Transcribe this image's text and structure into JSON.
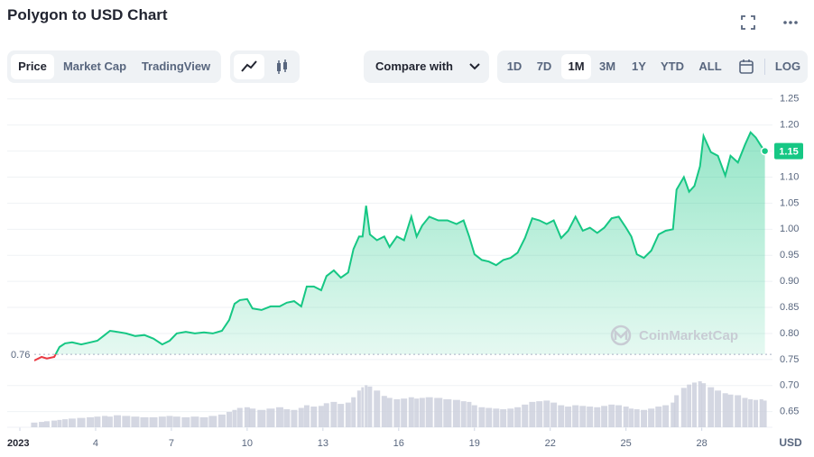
{
  "header": {
    "title": "Polygon to USD Chart"
  },
  "toolbar": {
    "tabs": [
      "Price",
      "Market Cap",
      "TradingView"
    ],
    "compare": "Compare with",
    "ranges": [
      "1D",
      "7D",
      "1M",
      "3M",
      "1Y",
      "YTD",
      "ALL"
    ],
    "scale": "LOG"
  },
  "chart_data": {
    "type": "line",
    "x": [
      1.57,
      1.86,
      2.07,
      2.36,
      2.57,
      2.79,
      3.07,
      3.43,
      3.79,
      4.07,
      4.36,
      4.57,
      4.86,
      5.21,
      5.57,
      5.93,
      6.29,
      6.64,
      6.93,
      7.21,
      7.57,
      7.93,
      8.29,
      8.64,
      9,
      9.29,
      9.5,
      9.71,
      10,
      10.21,
      10.57,
      10.93,
      11.29,
      11.57,
      11.86,
      12.14,
      12.36,
      12.64,
      12.93,
      13.14,
      13.43,
      13.71,
      14,
      14.21,
      14.43,
      14.57,
      14.71,
      14.86,
      15.14,
      15.43,
      15.64,
      15.93,
      16.21,
      16.5,
      16.71,
      16.93,
      17.21,
      17.57,
      17.93,
      18.29,
      18.57,
      18.79,
      19,
      19.29,
      19.57,
      19.86,
      20.14,
      20.43,
      20.71,
      21,
      21.29,
      21.57,
      21.86,
      22.14,
      22.43,
      22.71,
      23,
      23.29,
      23.57,
      23.86,
      24.14,
      24.43,
      24.71,
      25,
      25.21,
      25.43,
      25.71,
      26,
      26.29,
      26.57,
      26.86,
      27,
      27.29,
      27.5,
      27.71,
      27.93,
      28.07,
      28.36,
      28.64,
      28.93,
      29.14,
      29.43,
      29.71,
      29.93,
      30.14,
      30.36,
      30.5
    ],
    "values": [
      0.748,
      0.755,
      0.752,
      0.755,
      0.774,
      0.781,
      0.783,
      0.779,
      0.783,
      0.786,
      0.797,
      0.805,
      0.803,
      0.8,
      0.795,
      0.797,
      0.79,
      0.779,
      0.786,
      0.8,
      0.803,
      0.8,
      0.802,
      0.8,
      0.805,
      0.826,
      0.857,
      0.864,
      0.866,
      0.848,
      0.845,
      0.852,
      0.852,
      0.859,
      0.862,
      0.852,
      0.89,
      0.89,
      0.883,
      0.91,
      0.921,
      0.907,
      0.917,
      0.962,
      0.986,
      0.986,
      1.045,
      0.99,
      0.979,
      0.986,
      0.966,
      0.986,
      0.979,
      1.024,
      0.986,
      1.007,
      1.024,
      1.017,
      1.017,
      1.01,
      1.017,
      0.986,
      0.952,
      0.941,
      0.938,
      0.931,
      0.941,
      0.945,
      0.955,
      0.983,
      1.021,
      1.017,
      1.01,
      1.017,
      0.983,
      0.997,
      1.024,
      0.997,
      1.003,
      0.993,
      1.003,
      1.021,
      1.024,
      1.003,
      0.986,
      0.952,
      0.945,
      0.959,
      0.99,
      0.997,
      1.0,
      1.076,
      1.1,
      1.072,
      1.083,
      1.121,
      1.179,
      1.148,
      1.141,
      1.103,
      1.141,
      1.128,
      1.162,
      1.186,
      1.176,
      1.159,
      1.15
    ],
    "color": "#16c784",
    "below_color": "#ea3943",
    "open_price": 0.76,
    "current_price": 1.15,
    "volume": {
      "color": "#c9cddb",
      "values": [
        1.4,
        1.6,
        1.8,
        2,
        2.2,
        2.4,
        2.6,
        2.8,
        3,
        3.2,
        3.4,
        3.2,
        3.6,
        3.4,
        3.2,
        3,
        3,
        3.2,
        3.4,
        3.2,
        3,
        3.2,
        3,
        3.4,
        3.8,
        4.6,
        5.2,
        5.8,
        6,
        5.6,
        5.2,
        5.6,
        6,
        5.4,
        5.2,
        5.8,
        6.6,
        6.2,
        6.4,
        7.2,
        7.6,
        7,
        7.4,
        9,
        11,
        12,
        12.6,
        12.2,
        11,
        9.4,
        8.8,
        8.4,
        8.6,
        9,
        8.6,
        8.8,
        9,
        8.8,
        8.4,
        8.2,
        7.8,
        7.6,
        6.6,
        6,
        5.8,
        5.6,
        5.4,
        5.6,
        6,
        6.8,
        7.6,
        7.8,
        8,
        7.4,
        6.6,
        6.2,
        6.6,
        6.4,
        6.2,
        6,
        6.4,
        6.8,
        6.6,
        6.2,
        5.6,
        5.4,
        5.2,
        5.6,
        6.2,
        6.6,
        7.4,
        9.6,
        11.8,
        12.8,
        13.4,
        13.8,
        13.2,
        12,
        11,
        10.2,
        9.8,
        9.6,
        8.8,
        8.4,
        8.2,
        8.4,
        8
      ]
    },
    "y2lim": [
      0,
      100
    ],
    "xlim": [
      0.5,
      30.8
    ],
    "xticks": [
      {
        "value": 1,
        "label": "2023"
      },
      4,
      7,
      10,
      13,
      16,
      19,
      22,
      25,
      28
    ],
    "ylim": [
      0.62,
      1.26
    ],
    "yticks": [
      0.65,
      {
        "value": 0.7,
        "label": "0.70"
      },
      0.75,
      {
        "value": 0.8,
        "label": "0.80"
      },
      0.85,
      {
        "value": 0.9,
        "label": "0.90"
      },
      0.95,
      {
        "value": 1.0,
        "label": "1.00"
      },
      1.05,
      {
        "value": 1.1,
        "label": "1.10"
      },
      1.15,
      {
        "value": 1.2,
        "label": "1.20"
      },
      1.25
    ],
    "grid": true,
    "x_unit": "USD",
    "watermark": "CoinMarketCap"
  }
}
